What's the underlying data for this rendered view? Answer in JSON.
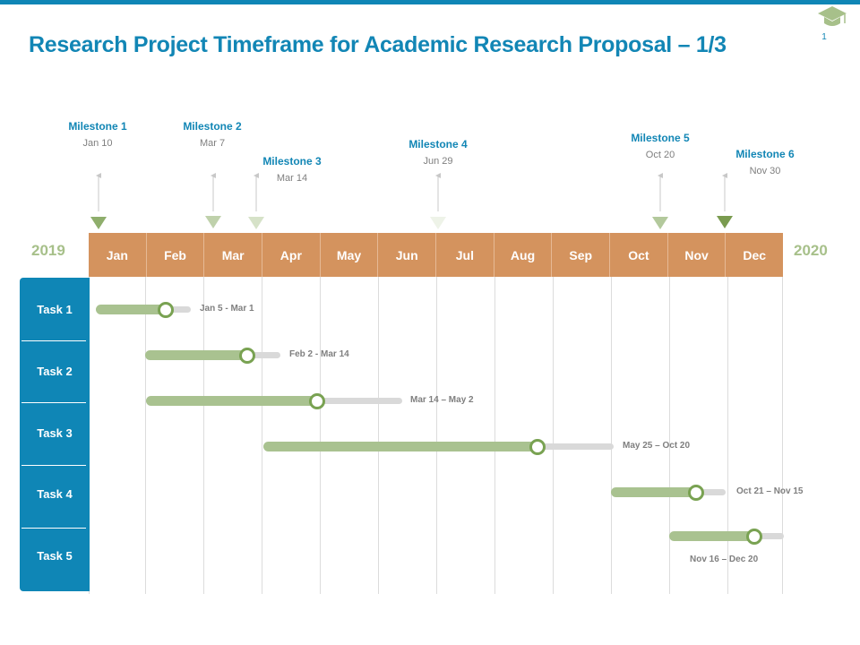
{
  "header": {
    "title": "Research Project Timeframe for Academic Research Proposal – 1/3",
    "page_number": "1",
    "logo_icon": "graduation-cap-icon"
  },
  "years": {
    "start": "2019",
    "end": "2020"
  },
  "months": [
    "Jan",
    "Feb",
    "Mar",
    "Apr",
    "May",
    "Jun",
    "Jul",
    "Aug",
    "Sep",
    "Oct",
    "Nov",
    "Dec"
  ],
  "milestones": [
    {
      "title": "Milestone 1",
      "date": "Jan 10"
    },
    {
      "title": "Milestone 2",
      "date": "Mar 7"
    },
    {
      "title": "Milestone 3",
      "date": "Mar 14"
    },
    {
      "title": "Milestone 4",
      "date": "Jun 29"
    },
    {
      "title": "Milestone 5",
      "date": "Oct 20"
    },
    {
      "title": "Milestone 6",
      "date": "Nov 30"
    }
  ],
  "tasks": [
    {
      "label": "Task 1"
    },
    {
      "label": "Task 2"
    },
    {
      "label": "Task 3"
    },
    {
      "label": "Task 4"
    },
    {
      "label": "Task 5"
    }
  ],
  "bars": [
    {
      "range": "Jan 5 - Mar 1"
    },
    {
      "range": "Feb 2 - Mar 14"
    },
    {
      "range": "Mar 14 – May 2"
    },
    {
      "range": "May 25 – Oct 20"
    },
    {
      "range": "Oct 21 – Nov 15"
    },
    {
      "range": "Nov 16 – Dec 20"
    }
  ],
  "colors": {
    "primary_blue": "#0f86b6",
    "month_bar": "#d4935e",
    "green": "#a9c290",
    "knob_border": "#79a252",
    "track_gray": "#d9d9d9"
  }
}
